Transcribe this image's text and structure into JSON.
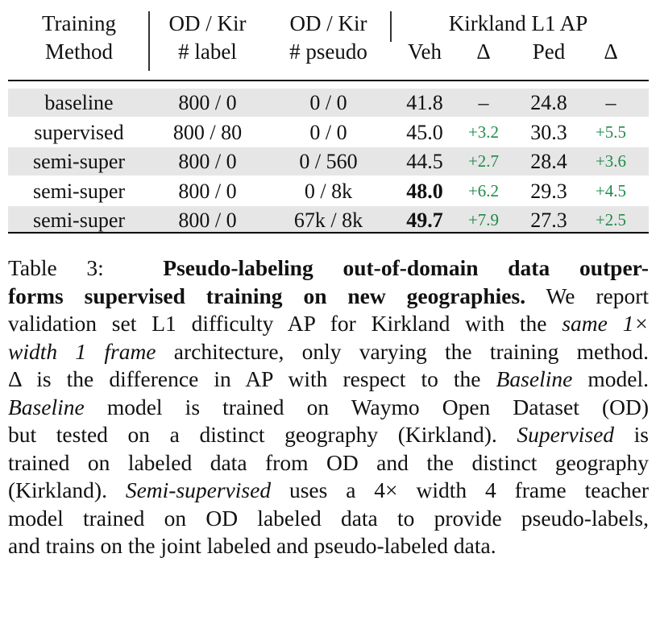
{
  "header": {
    "training_method_1": "Training",
    "training_method_2": "Method",
    "od_kir_label_1": "OD / Kir",
    "od_kir_label_2": "# label",
    "od_kir_pseudo_1": "OD / Kir",
    "od_kir_pseudo_2": "# pseudo",
    "kirkland_group": "Kirkland L1 AP",
    "veh": "Veh",
    "delta1": "Δ",
    "ped": "Ped",
    "delta2": "Δ"
  },
  "rows": [
    {
      "method": "baseline",
      "label": "800 / 0",
      "pseudo": "0 / 0",
      "veh": "41.8",
      "dveh": "–",
      "ped": "24.8",
      "dped": "–"
    },
    {
      "method": "supervised",
      "label": "800 / 80",
      "pseudo": "0 / 0",
      "veh": "45.0",
      "dveh": "+3.2",
      "ped": "30.3",
      "dped": "+5.5"
    },
    {
      "method": "semi-super",
      "label": "800 / 0",
      "pseudo": "0 / 560",
      "veh": "44.5",
      "dveh": "+2.7",
      "ped": "28.4",
      "dped": "+3.6"
    },
    {
      "method": "semi-super",
      "label": "800 / 0",
      "pseudo": "0 / 8k",
      "veh": "48.0",
      "dveh": "+6.2",
      "ped": "29.3",
      "dped": "+4.5"
    },
    {
      "method": "semi-super",
      "label": "800 / 0",
      "pseudo": "67k / 8k",
      "veh": "49.7",
      "dveh": "+7.9",
      "ped": "27.3",
      "dped": "+2.5"
    }
  ],
  "caption": {
    "table_num": "Table 3:",
    "bold_a": "Pseudo-labeling out-of-domain data outper-",
    "bold_b": "forms supervised training on new geographies.",
    "l2_rest": "We report",
    "l3": "validation set L1 difficulty AP for Kirkland with the",
    "l3_it": "same 1×",
    "l4_it": "width 1 frame",
    "l4_rest": "architecture, only varying the training method.",
    "l5_a": "Δ is the difference in AP with respect to the",
    "l5_it": "Baseline",
    "l5_b": "model.",
    "l6_it": "Baseline",
    "l6_rest": "model is trained on Waymo Open Dataset (OD)",
    "l7_a": "but tested on a distinct geography (Kirkland).",
    "l7_it": "Supervised",
    "l7_b": "is",
    "l8": "trained on labeled data from OD and the distinct geography",
    "l9_a": "(Kirkland).",
    "l9_it": "Semi-supervised",
    "l9_b": "uses a 4× width 4 frame teacher",
    "l10": "model trained on OD labeled data to provide pseudo-labels,",
    "l11": "and trains on the joint labeled and pseudo-labeled data."
  }
}
